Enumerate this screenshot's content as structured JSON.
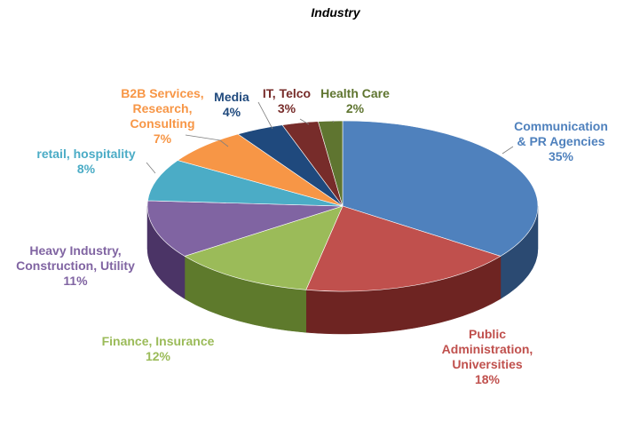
{
  "chart_data": {
    "type": "pie",
    "title": "Industry",
    "slices": [
      {
        "name": "Communication & PR Agencies",
        "value": 35,
        "label": "35%",
        "color": "#4f81bd",
        "dark": "#2b4a72"
      },
      {
        "name": "Public Administration, Universities",
        "value": 18,
        "label": "18%",
        "color": "#c0504d",
        "dark": "#6e2422"
      },
      {
        "name": "Finance, Insurance",
        "value": 12,
        "label": "12%",
        "color": "#9bbb59",
        "dark": "#5e7a2c"
      },
      {
        "name": "Heavy Industry, Construction, Utility",
        "value": 11,
        "label": "11%",
        "color": "#8064a2",
        "dark": "#4b3466"
      },
      {
        "name": "retail, hospitality",
        "value": 8,
        "label": "8%",
        "color": "#4bacc6",
        "dark": "#23697b"
      },
      {
        "name": "B2B Services, Research, Consulting",
        "value": 7,
        "label": "7%",
        "color": "#f79646",
        "dark": "#a85a1a"
      },
      {
        "name": "Media",
        "value": 4,
        "label": "4%",
        "color": "#1f497d",
        "dark": "#0f2744"
      },
      {
        "name": "IT, Telco",
        "value": 3,
        "label": "3%",
        "color": "#772c2a",
        "dark": "#431615"
      },
      {
        "name": "Health Care",
        "value": 2,
        "label": "2%",
        "color": "#5f7530",
        "dark": "#34421a"
      }
    ],
    "label_colors": [
      "#4f81bd",
      "#c0504d",
      "#9bbb59",
      "#8064a2",
      "#4bacc6",
      "#f79646",
      "#1f497d",
      "#772c2a",
      "#5f7530"
    ]
  }
}
